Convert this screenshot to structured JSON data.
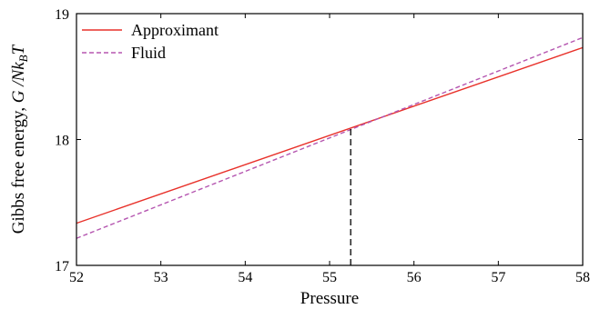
{
  "chart_data": {
    "type": "line",
    "xlabel": "Pressure",
    "ylabel_prefix": "Gibbs free energy, ",
    "ylabel_symbol": "G /Nk",
    "ylabel_sub": "B",
    "ylabel_suffix": "T",
    "xlim": [
      52,
      58
    ],
    "ylim": [
      17,
      19
    ],
    "xticks": [
      52,
      53,
      54,
      55,
      56,
      57,
      58
    ],
    "yticks": [
      17,
      18,
      19
    ],
    "xtick_labels": [
      "52",
      "53",
      "54",
      "55",
      "56",
      "57",
      "58"
    ],
    "ytick_labels": [
      "17",
      "18",
      "19"
    ],
    "legend_position": "top-left",
    "grid": false,
    "series": [
      {
        "name": "Approximant",
        "x": [
          52,
          58
        ],
        "y": [
          17.335,
          18.73
        ],
        "color": "#e8312a",
        "style": "solid"
      },
      {
        "name": "Fluid",
        "x": [
          52,
          58
        ],
        "y": [
          17.215,
          18.81
        ],
        "color": "#b556b0",
        "style": "dashed"
      }
    ],
    "annotations": [
      {
        "type": "vline",
        "x": 55.25,
        "y_from": 17,
        "y_to": 18.09,
        "color": "#000000",
        "style": "dashed"
      }
    ]
  }
}
